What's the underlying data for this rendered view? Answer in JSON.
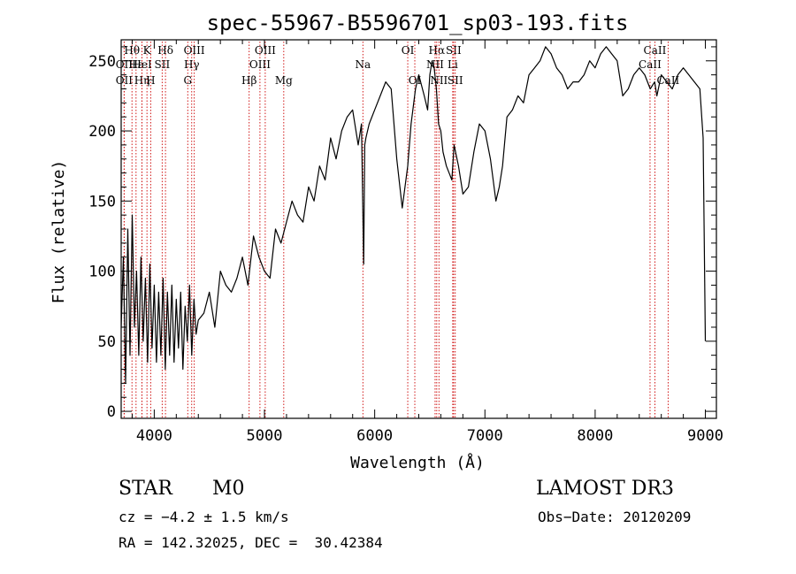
{
  "chart_data": {
    "type": "line",
    "title": "spec-55967-B5596701_sp03-193.fits",
    "xlabel": "Wavelength (Å)",
    "ylabel": "Flux (relative)",
    "xlim": [
      3700,
      9100
    ],
    "ylim": [
      -5,
      265
    ],
    "xticks": [
      4000,
      5000,
      6000,
      7000,
      8000,
      9000
    ],
    "yticks": [
      0,
      50,
      100,
      150,
      200,
      250
    ],
    "grid": false,
    "series": [
      {
        "color": "#000000",
        "x": [
          3700,
          3720,
          3740,
          3760,
          3780,
          3800,
          3820,
          3840,
          3860,
          3880,
          3900,
          3920,
          3940,
          3960,
          3980,
          4000,
          4020,
          4040,
          4060,
          4080,
          4100,
          4120,
          4140,
          4160,
          4180,
          4200,
          4220,
          4240,
          4260,
          4280,
          4300,
          4320,
          4340,
          4360,
          4380,
          4400,
          4450,
          4500,
          4550,
          4600,
          4650,
          4700,
          4750,
          4800,
          4850,
          4900,
          4950,
          5000,
          5050,
          5100,
          5150,
          5200,
          5250,
          5300,
          5350,
          5400,
          5450,
          5500,
          5550,
          5600,
          5650,
          5700,
          5750,
          5800,
          5850,
          5880,
          5900,
          5910,
          5920,
          5950,
          6000,
          6050,
          6100,
          6150,
          6200,
          6250,
          6300,
          6330,
          6370,
          6400,
          6450,
          6480,
          6500,
          6520,
          6540,
          6560,
          6580,
          6600,
          6620,
          6650,
          6700,
          6720,
          6760,
          6800,
          6850,
          6900,
          6950,
          7000,
          7050,
          7100,
          7130,
          7160,
          7200,
          7250,
          7300,
          7350,
          7400,
          7450,
          7500,
          7550,
          7600,
          7650,
          7700,
          7750,
          7800,
          7850,
          7900,
          7950,
          8000,
          8050,
          8100,
          8150,
          8200,
          8250,
          8300,
          8350,
          8400,
          8450,
          8500,
          8540,
          8560,
          8600,
          8650,
          8700,
          8750,
          8800,
          8850,
          8900,
          8950,
          8980,
          9000
        ],
        "y": [
          60,
          110,
          20,
          130,
          40,
          140,
          60,
          100,
          40,
          110,
          50,
          95,
          35,
          105,
          45,
          90,
          35,
          85,
          40,
          95,
          30,
          85,
          40,
          90,
          35,
          80,
          45,
          85,
          30,
          75,
          50,
          90,
          40,
          80,
          55,
          65,
          70,
          85,
          60,
          100,
          90,
          85,
          95,
          110,
          90,
          125,
          110,
          100,
          95,
          130,
          120,
          135,
          150,
          140,
          135,
          160,
          150,
          175,
          165,
          195,
          180,
          200,
          210,
          215,
          190,
          205,
          105,
          190,
          195,
          205,
          215,
          225,
          235,
          230,
          180,
          145,
          175,
          205,
          230,
          240,
          225,
          215,
          240,
          250,
          245,
          230,
          205,
          200,
          185,
          175,
          165,
          190,
          175,
          155,
          160,
          185,
          205,
          200,
          180,
          150,
          160,
          175,
          210,
          215,
          225,
          220,
          240,
          245,
          250,
          260,
          255,
          245,
          240,
          230,
          235,
          235,
          240,
          250,
          245,
          255,
          260,
          255,
          250,
          225,
          230,
          240,
          245,
          240,
          230,
          235,
          225,
          240,
          235,
          230,
          240,
          245,
          240,
          235,
          230,
          195,
          50
        ]
      }
    ],
    "line_markers": [
      {
        "label": "Hθ",
        "x": 3798,
        "row": 0
      },
      {
        "label": "OII",
        "x": 3727,
        "row": 1
      },
      {
        "label": "OII",
        "x": 3727,
        "row": 2
      },
      {
        "label": "Hε",
        "x": 3835,
        "row": 1
      },
      {
        "label": "Hη",
        "x": 3889,
        "row": 2
      },
      {
        "label": "K",
        "x": 3934,
        "row": 0
      },
      {
        "label": "HeI",
        "x": 3889,
        "row": 1
      },
      {
        "label": "H",
        "x": 3968,
        "row": 2
      },
      {
        "label": "Hδ",
        "x": 4102,
        "row": 0
      },
      {
        "label": "SII",
        "x": 4072,
        "row": 1
      },
      {
        "label": "OIII",
        "x": 4363,
        "row": 0
      },
      {
        "label": "Hγ",
        "x": 4340,
        "row": 1
      },
      {
        "label": "G",
        "x": 4304,
        "row": 2
      },
      {
        "label": "Hβ",
        "x": 4861,
        "row": 2
      },
      {
        "label": "OIII",
        "x": 5007,
        "row": 0
      },
      {
        "label": "OIII",
        "x": 4959,
        "row": 1
      },
      {
        "label": "Mg",
        "x": 5175,
        "row": 2
      },
      {
        "label": "Na",
        "x": 5893,
        "row": 1
      },
      {
        "label": "OI",
        "x": 6300,
        "row": 0
      },
      {
        "label": "OI",
        "x": 6364,
        "row": 2
      },
      {
        "label": "Hα",
        "x": 6563,
        "row": 0
      },
      {
        "label": "NII",
        "x": 6548,
        "row": 1
      },
      {
        "label": "NII",
        "x": 6583,
        "row": 2
      },
      {
        "label": "SII",
        "x": 6716,
        "row": 0
      },
      {
        "label": "Li",
        "x": 6708,
        "row": 1
      },
      {
        "label": "SII",
        "x": 6731,
        "row": 2
      },
      {
        "label": "CaII",
        "x": 8542,
        "row": 0
      },
      {
        "label": "CaII",
        "x": 8498,
        "row": 1
      },
      {
        "label": "CaII",
        "x": 8662,
        "row": 2
      }
    ],
    "marker_color": "#cc0000"
  },
  "info": {
    "class": "STAR",
    "subclass": "M0",
    "survey": "LAMOST DR3",
    "cz": "cz = −4.2 ± 1.5 km/s",
    "obs_date": "Obs−Date: 20120209",
    "coords": "RA = 142.32025, DEC =  30.42384"
  }
}
